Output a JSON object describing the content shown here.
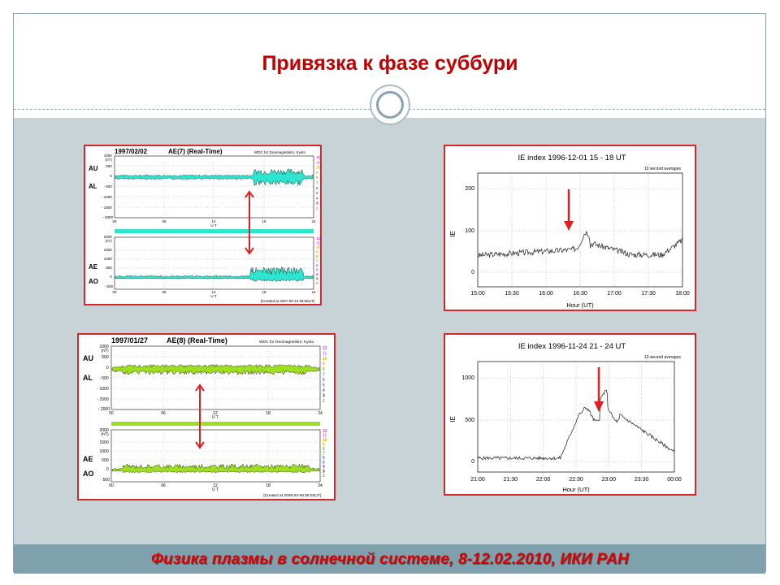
{
  "slide": {
    "title": "Привязка к фазе суббури",
    "footer": "Физика плазмы в солнечной системе, 8-12.02.2010, ИКИ РАН"
  },
  "colors": {
    "title": "#c00000",
    "footer_bg": "#7fa1ad",
    "content_bg": "#c8d3d8",
    "ae1_fill": "#2ee6d0",
    "ae2_fill": "#9ee020",
    "arrow": "#e02020"
  },
  "ae_panels": [
    {
      "date": "1997/02/02",
      "title": "AE(7)  (Real-Time)",
      "source": "WDC for Geomagnetism, Kyoto",
      "created": "[Created at 2007-06-14 08:55UT]",
      "top_labels": [
        "AU",
        "AL"
      ],
      "bottom_labels": [
        "AE",
        "AO"
      ],
      "top_ticks": [
        "1000",
        "(nT)",
        "500",
        "0",
        "- 500",
        "- 1000",
        "- 1500",
        "- 2000"
      ],
      "bottom_ticks": [
        "2000",
        "(nT)",
        "1500",
        "1000",
        "500",
        "0",
        "- 500"
      ],
      "x_ticks": [
        "00",
        "06",
        "12",
        "18",
        "24"
      ],
      "x_unit": "U T",
      "legend_hours": [
        "12",
        "11",
        "10",
        "9",
        "8",
        "7",
        "6",
        "5",
        "4",
        "3",
        "2"
      ]
    },
    {
      "date": "1997/01/27",
      "title": "AE(8)  (Real-Time)",
      "source": "WDC for Geomagnetism, Kyoto",
      "created": "[Created at 2009-03-09 06:03UT]",
      "top_labels": [
        "AU",
        "AL"
      ],
      "bottom_labels": [
        "AE",
        "AO"
      ],
      "top_ticks": [
        "1000",
        "(nT)",
        "500",
        "0",
        "- 500",
        "- 1000",
        "- 1500",
        "- 2000"
      ],
      "bottom_ticks": [
        "2000",
        "(nT)",
        "1500",
        "1000",
        "500",
        "0",
        "- 500"
      ],
      "x_ticks": [
        "00",
        "06",
        "12",
        "18",
        "24"
      ],
      "x_unit": "U T",
      "legend_hours": [
        "12",
        "11",
        "10",
        "9",
        "8",
        "7",
        "6",
        "5",
        "4",
        "3",
        "2"
      ]
    }
  ],
  "ie_panels": [
    {
      "title": "IE index 1996-12-01  15 - 18 UT",
      "note": "10 second averages",
      "ylabel": "IE",
      "xlabel": "Hour (UT)",
      "y_ticks": [
        "200",
        "100",
        "0"
      ],
      "x_ticks": [
        "15:00",
        "15:30",
        "16:00",
        "16:30",
        "17:00",
        "17:30",
        "18:00"
      ]
    },
    {
      "title": "IE index 1996-11-24  21 - 24 UT",
      "note": "10 second averages",
      "ylabel": "IE",
      "xlabel": "Hour (UT)",
      "y_ticks": [
        "1000",
        "500",
        "0"
      ],
      "x_ticks": [
        "21:00",
        "21:30",
        "22:00",
        "22:30",
        "23:00",
        "23:30",
        "00:00"
      ]
    }
  ]
}
